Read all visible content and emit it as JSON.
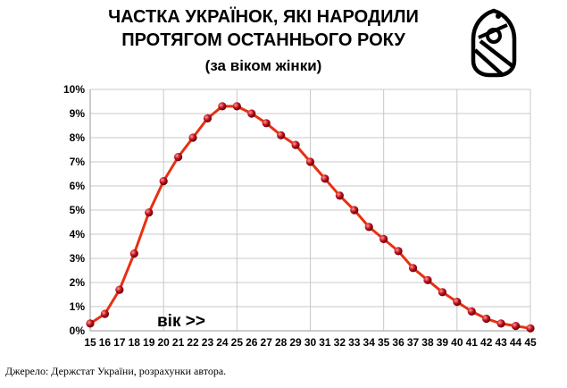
{
  "chart_data": {
    "type": "line",
    "title_line1": "ЧАСТКА УКРАЇНОК, ЯКІ НАРОДИЛИ",
    "title_line2": "ПРОТЯГОМ ОСТАННЬОГО РОКУ",
    "subtitle": "(за віком жінки)",
    "xlabel": "",
    "ylabel": "",
    "annotation": "вік >>",
    "x": [
      15,
      16,
      17,
      18,
      19,
      20,
      21,
      22,
      23,
      24,
      25,
      26,
      27,
      28,
      29,
      30,
      31,
      32,
      33,
      34,
      35,
      36,
      37,
      38,
      39,
      40,
      41,
      42,
      43,
      44,
      45
    ],
    "series": [
      {
        "values": [
          0.3,
          0.7,
          1.7,
          3.2,
          4.9,
          6.2,
          7.2,
          8.0,
          8.8,
          9.3,
          9.3,
          9.0,
          8.6,
          8.1,
          7.7,
          7.0,
          6.3,
          5.6,
          5.0,
          4.3,
          3.8,
          3.3,
          2.6,
          2.1,
          1.6,
          1.2,
          0.8,
          0.5,
          0.3,
          0.2,
          0.1
        ],
        "color": "#e83010",
        "marker_color": "#c0101a"
      }
    ],
    "xlim": [
      15,
      45
    ],
    "ylim": [
      0,
      10
    ],
    "y_ticks": [
      "0%",
      "1%",
      "2%",
      "3%",
      "4%",
      "5%",
      "6%",
      "7%",
      "8%",
      "9%",
      "10%"
    ],
    "grid": true,
    "grid_color": "#c8c8c8"
  },
  "source_note": "Джерело: Держстат України, розрахунки автора.",
  "logo_icon": "stork-baby-logo-icon"
}
